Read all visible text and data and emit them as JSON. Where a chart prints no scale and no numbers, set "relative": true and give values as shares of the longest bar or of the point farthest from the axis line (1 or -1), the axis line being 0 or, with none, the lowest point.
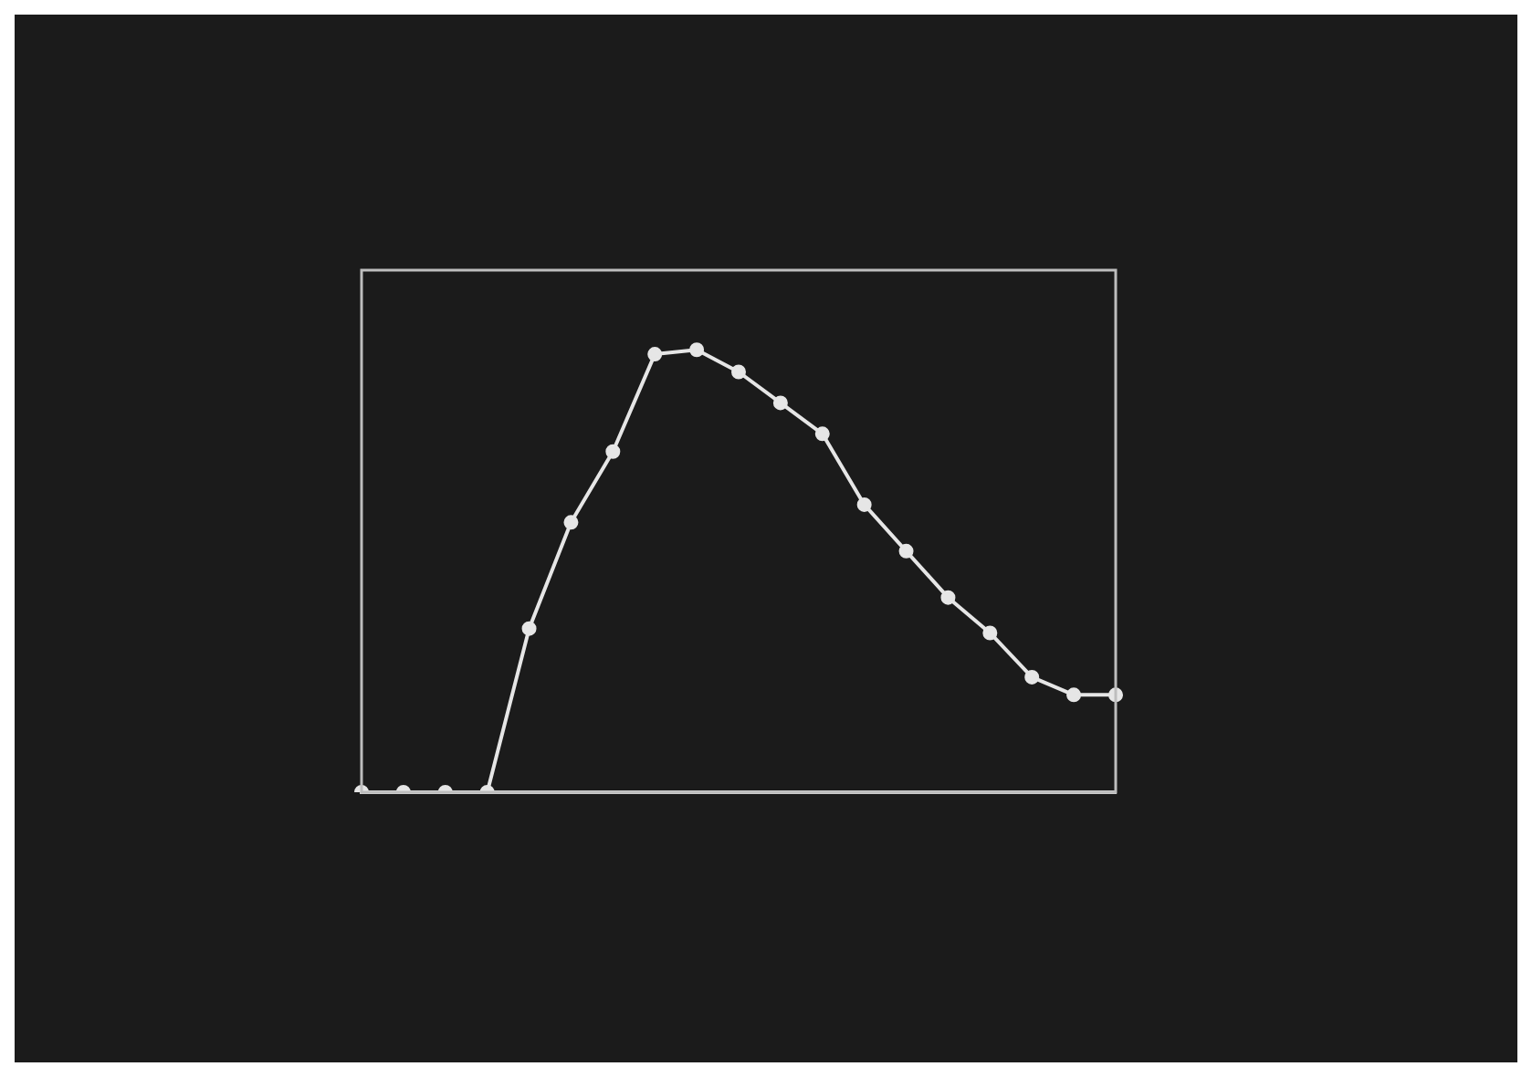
{
  "chart_data": {
    "type": "line",
    "relative": true,
    "categories": [
      null,
      null,
      null,
      null,
      null,
      null,
      null,
      null,
      null,
      null,
      null,
      null,
      null,
      null,
      null,
      null,
      null,
      null,
      null
    ],
    "series": [
      {
        "color": "#e6e6e6",
        "values": [
          0,
          0,
          0,
          0,
          0.37,
          0.61,
          0.77,
          0.99,
          1,
          0.95,
          0.88,
          0.81,
          0.65,
          0.545,
          0.44,
          0.36,
          0.26,
          0.22,
          0.22
        ]
      }
    ],
    "marker": "circle",
    "line_style": "solid",
    "legend": false
  }
}
